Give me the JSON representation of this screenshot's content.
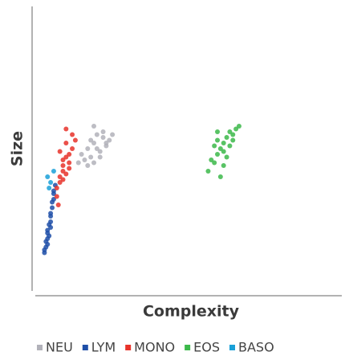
{
  "chart_data": {
    "type": "scatter",
    "x_label": "Complexity",
    "y_label": "Size",
    "xlim": [
      0,
      100
    ],
    "ylim": [
      0,
      100
    ],
    "series": [
      {
        "name": "NEU",
        "color": "#b2b2ba",
        "x": [
          16,
          18,
          19,
          20,
          21,
          22,
          23,
          24,
          17,
          19,
          21,
          23,
          25,
          18,
          20,
          22,
          24,
          15,
          20,
          26
        ],
        "y": [
          48,
          50,
          53,
          52,
          55,
          49,
          54,
          51,
          46,
          47,
          50,
          56,
          53,
          44,
          45,
          47,
          52,
          45,
          58,
          55
        ]
      },
      {
        "name": "LYM",
        "color": "#1f4fa8",
        "x": [
          4,
          4.5,
          5,
          5.5,
          6,
          6.5,
          7,
          4,
          5,
          6,
          7,
          5,
          6,
          4.5,
          5.5,
          6.5,
          7.5,
          5,
          6,
          7
        ],
        "y": [
          14,
          17,
          20,
          23,
          26,
          29,
          32,
          13,
          18,
          24,
          35,
          21,
          27,
          15,
          19,
          31,
          37,
          16,
          22,
          34
        ]
      },
      {
        "name": "MONO",
        "color": "#e8332a",
        "x": [
          8,
          9,
          10,
          11,
          12,
          13,
          9,
          10,
          11,
          12,
          8,
          10,
          14,
          9,
          11,
          13,
          10,
          12,
          8.5,
          11
        ],
        "y": [
          36,
          40,
          44,
          47,
          48,
          50,
          38,
          42,
          52,
          45,
          33,
          46,
          53,
          49,
          41,
          55,
          39,
          43,
          30,
          57
        ]
      },
      {
        "name": "EOS",
        "color": "#3cb94a",
        "x": [
          57,
          59,
          60,
          61,
          62,
          63,
          64,
          65,
          66,
          58,
          60,
          62,
          64,
          67,
          61,
          63,
          59,
          65,
          62,
          60
        ],
        "y": [
          42,
          45,
          48,
          50,
          52,
          54,
          56,
          55,
          57,
          46,
          53,
          49,
          51,
          58,
          40,
          47,
          51,
          53,
          44,
          56
        ]
      },
      {
        "name": "BASO",
        "color": "#1aa0d8",
        "x": [
          5,
          6,
          5.5,
          7
        ],
        "y": [
          40,
          38,
          36,
          42
        ]
      }
    ]
  }
}
